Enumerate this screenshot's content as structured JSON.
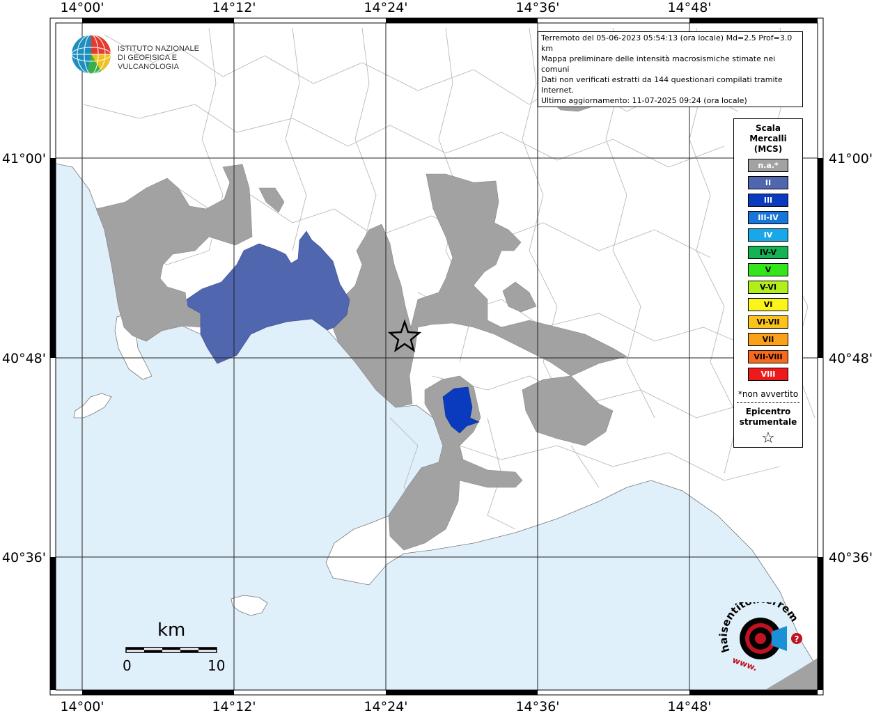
{
  "map": {
    "lon_labels": [
      "14°00'",
      "14°12'",
      "14°24'",
      "14°36'",
      "14°48'"
    ],
    "lat_labels": [
      "41°00'",
      "40°48'",
      "40°36'"
    ],
    "epicenter_symbol": "star-icon",
    "colors": {
      "sea": "#e0f0fb",
      "land": "#ffffff",
      "not_felt": "#a2a2a2",
      "intensity_II": "#5066af",
      "intensity_III": "#0a3bbf"
    }
  },
  "info": {
    "line1": "Terremoto del 05-06-2023 05:54:13 (ora locale) Md=2.5 Prof=3.0 km",
    "line2": "Mappa preliminare delle intensità macrosismiche stimate nei comuni",
    "line3": "Dati non verificati estratti da 144 questionari compilati tramite Internet.",
    "line4": "Ultimo aggiornamento: 11-07-2025 09:24 (ora locale)"
  },
  "logo": {
    "line1": "ISTITUTO NAZIONALE",
    "line2": "DI GEOFISICA E VULCANOLOGIA",
    "icon": "globe-icon"
  },
  "legend": {
    "title_line1": "Scala",
    "title_line2": "Mercalli",
    "title_line3": "(MCS)",
    "items": [
      {
        "label": "n.a.*",
        "color": "#a2a2a2",
        "text_color": "#ffffff"
      },
      {
        "label": "II",
        "color": "#5066af",
        "text_color": "#ffffff"
      },
      {
        "label": "III",
        "color": "#0a3bbf",
        "text_color": "#ffffff"
      },
      {
        "label": "III-IV",
        "color": "#1976d8",
        "text_color": "#ffffff"
      },
      {
        "label": "IV",
        "color": "#18a7e8",
        "text_color": "#ffffff"
      },
      {
        "label": "IV-V",
        "color": "#16b354",
        "text_color": "#000000"
      },
      {
        "label": "V",
        "color": "#33e51a",
        "text_color": "#000000"
      },
      {
        "label": "V-VI",
        "color": "#b2ee1a",
        "text_color": "#000000"
      },
      {
        "label": "VI",
        "color": "#fbf41a",
        "text_color": "#000000"
      },
      {
        "label": "VI-VII",
        "color": "#fbc31a",
        "text_color": "#000000"
      },
      {
        "label": "VII",
        "color": "#fba01a",
        "text_color": "#000000"
      },
      {
        "label": "VII-VIII",
        "color": "#f8691a",
        "text_color": "#000000"
      },
      {
        "label": "VIII",
        "color": "#ec1a1a",
        "text_color": "#ffffff"
      }
    ],
    "note": "*non avvertito",
    "epicenter_line1": "Epicentro",
    "epicenter_line2": "strumentale"
  },
  "scalebar": {
    "unit": "km",
    "min_label": "0",
    "max_label": "10"
  },
  "hsi": {
    "text": "haisentitoilterremoto.it",
    "prefix": "www.",
    "badge": "?"
  }
}
